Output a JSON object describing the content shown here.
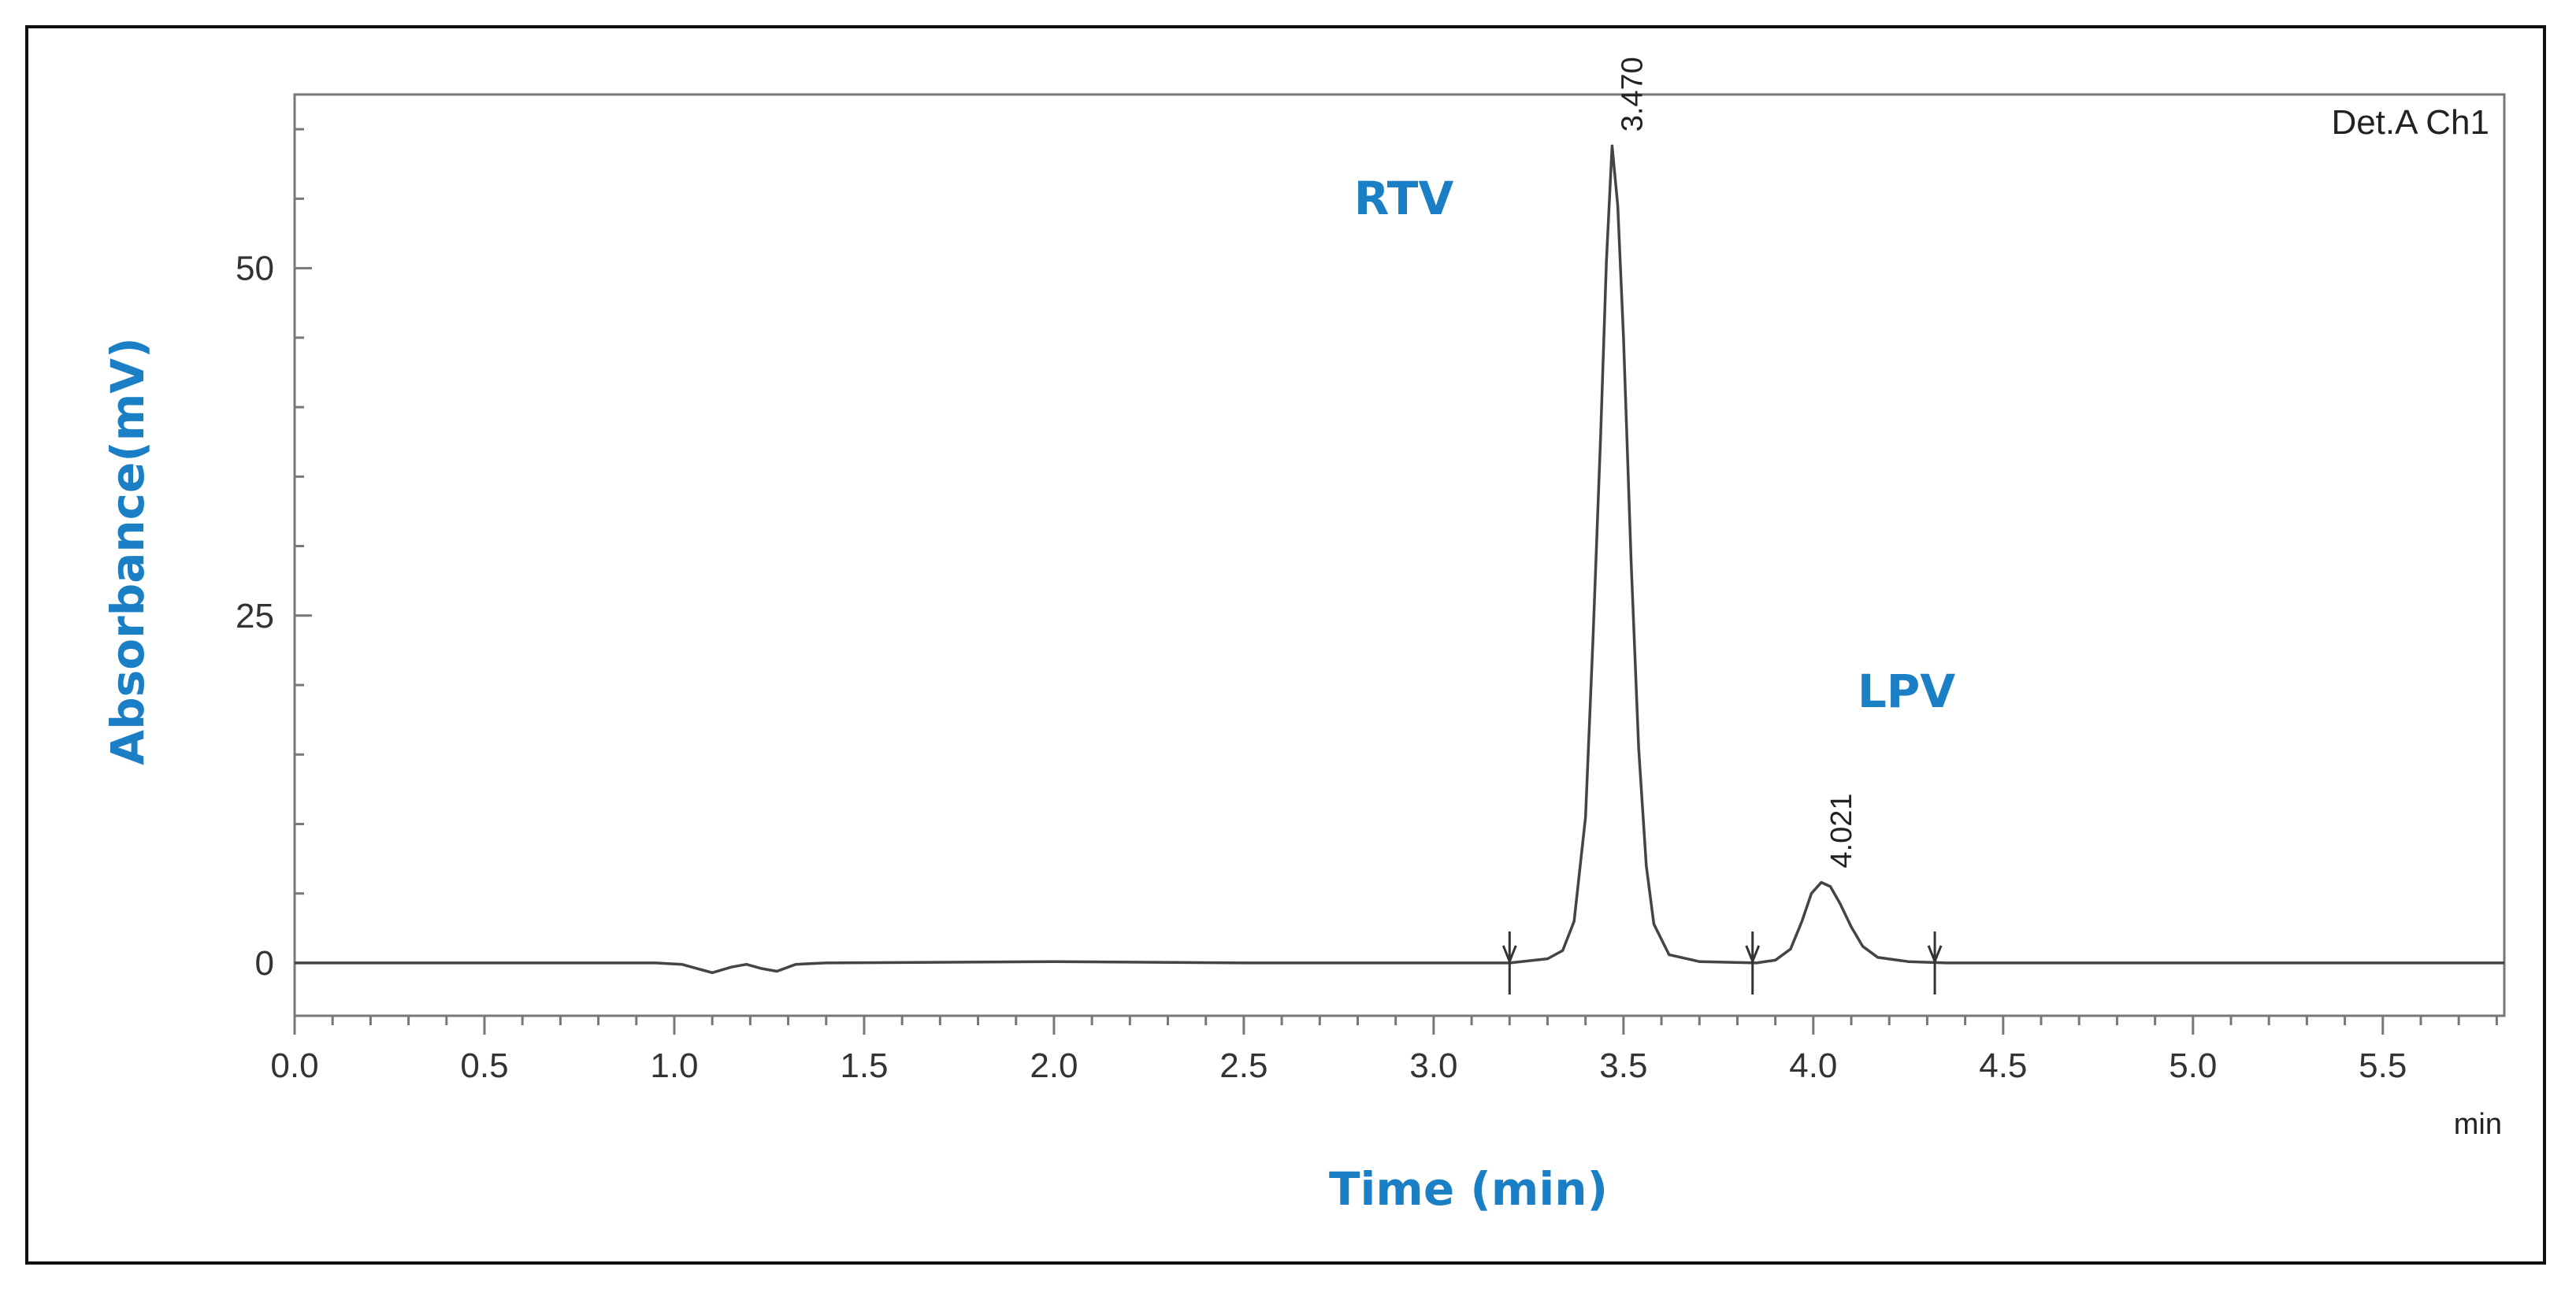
{
  "chart_data": {
    "type": "line",
    "title": "",
    "detector_label": "Det.A Ch1",
    "xlabel": "Time (min)",
    "x_unit": "min",
    "ylabel": "Absorbance(mV)",
    "xlim": [
      0,
      5.82
    ],
    "ylim": [
      -3.8,
      62.5
    ],
    "x_ticks": [
      "0.0",
      "0.5",
      "1.0",
      "1.5",
      "2.0",
      "2.5",
      "3.0",
      "3.5",
      "4.0",
      "4.5",
      "5.0",
      "5.5"
    ],
    "y_ticks": [
      "0",
      "25",
      "50"
    ],
    "grid": false,
    "accent_color": "#1a7fc4",
    "trace_color": "#444444",
    "series": [
      {
        "points": [
          [
            0.0,
            0.0
          ],
          [
            0.95,
            0.0
          ],
          [
            1.02,
            -0.1
          ],
          [
            1.1,
            -0.7
          ],
          [
            1.15,
            -0.3
          ],
          [
            1.19,
            -0.1
          ],
          [
            1.23,
            -0.4
          ],
          [
            1.27,
            -0.6
          ],
          [
            1.32,
            -0.1
          ],
          [
            1.4,
            0.0
          ],
          [
            2.0,
            0.1
          ],
          [
            2.5,
            0.0
          ],
          [
            3.2,
            0.0
          ],
          [
            3.3,
            0.3
          ],
          [
            3.34,
            0.9
          ],
          [
            3.37,
            3.0
          ],
          [
            3.4,
            10.5
          ],
          [
            3.42,
            23.5
          ],
          [
            3.44,
            38.0
          ],
          [
            3.455,
            50.5
          ],
          [
            3.47,
            58.8
          ],
          [
            3.485,
            54.5
          ],
          [
            3.5,
            45.0
          ],
          [
            3.52,
            29.0
          ],
          [
            3.54,
            15.5
          ],
          [
            3.56,
            7.0
          ],
          [
            3.58,
            2.8
          ],
          [
            3.62,
            0.6
          ],
          [
            3.7,
            0.1
          ],
          [
            3.85,
            0.0
          ],
          [
            3.9,
            0.2
          ],
          [
            3.94,
            1.0
          ],
          [
            3.97,
            3.0
          ],
          [
            3.995,
            5.0
          ],
          [
            4.021,
            5.8
          ],
          [
            4.045,
            5.5
          ],
          [
            4.07,
            4.3
          ],
          [
            4.1,
            2.6
          ],
          [
            4.13,
            1.2
          ],
          [
            4.17,
            0.4
          ],
          [
            4.25,
            0.1
          ],
          [
            4.35,
            0.0
          ],
          [
            5.82,
            0.0
          ]
        ]
      }
    ],
    "peaks": [
      {
        "name": "RTV",
        "retention_time": "3.470",
        "x": 3.47,
        "height": 58.8
      },
      {
        "name": "LPV",
        "retention_time": "4.021",
        "x": 4.021,
        "height": 5.8
      }
    ],
    "integration_markers": [
      3.2,
      3.84,
      4.32
    ]
  }
}
